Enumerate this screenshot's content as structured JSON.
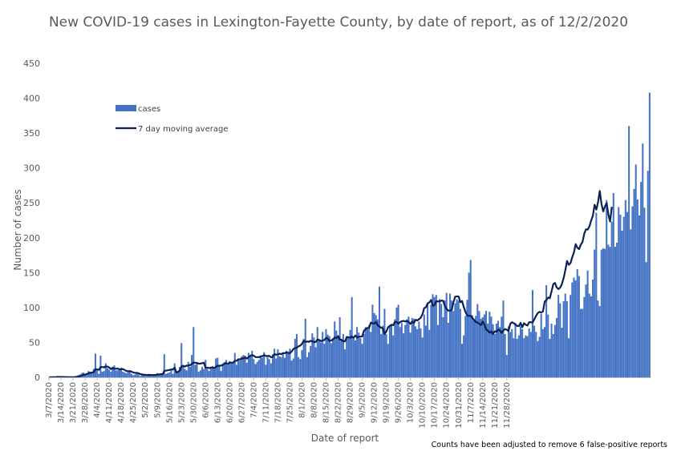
{
  "chart_data": {
    "type": "bar",
    "title": "New COVID-19 cases in Lexington-Fayette County, by date of report, as of 12/2/2020",
    "xlabel": "Date of report",
    "ylabel": "Number of cases",
    "ylim": [
      0,
      450
    ],
    "yticks": [
      0,
      50,
      100,
      150,
      200,
      250,
      300,
      350,
      400,
      450
    ],
    "grid": false,
    "legend_position": "top-left",
    "footnote": "Counts have been adjusted to remove 6 false-positive reports",
    "colors": {
      "bars": "#4472C4",
      "line": "#0B2154",
      "text": "#595959"
    },
    "x_start": "3/7/2020",
    "x_tick_labels": [
      "3/7/2020",
      "3/14/2020",
      "3/21/2020",
      "3/28/2020",
      "4/4/2020",
      "4/11/2020",
      "4/18/2020",
      "4/25/2020",
      "5/2/2020",
      "5/9/2020",
      "5/16/2020",
      "5/23/2020",
      "5/30/2020",
      "6/6/2020",
      "6/13/2020",
      "6/20/2020",
      "6/27/2020",
      "7/4/2020",
      "7/11/2020",
      "7/18/2020",
      "7/25/2020",
      "8/1/2020",
      "8/8/2020",
      "8/15/2020",
      "8/22/2020",
      "8/29/2020",
      "9/5/2020",
      "9/12/2020",
      "9/19/2020",
      "9/26/2020",
      "10/3/2020",
      "10/10/2020",
      "10/17/2020",
      "10/24/2020",
      "10/31/2020",
      "11/7/2020",
      "11/14/2020",
      "11/21/2020",
      "11/28/2020"
    ],
    "series": [
      {
        "name": "cases",
        "kind": "bar",
        "values": [
          0,
          0,
          1,
          0,
          0,
          2,
          0,
          0,
          0,
          0,
          1,
          0,
          0,
          1,
          0,
          1,
          2,
          3,
          4,
          6,
          7,
          5,
          6,
          9,
          8,
          7,
          12,
          34,
          10,
          5,
          31,
          8,
          9,
          20,
          13,
          11,
          8,
          15,
          17,
          10,
          10,
          12,
          14,
          8,
          7,
          6,
          9,
          10,
          5,
          3,
          4,
          6,
          4,
          2,
          3,
          4,
          3,
          2,
          5,
          3,
          2,
          4,
          3,
          6,
          4,
          5,
          4,
          33,
          5,
          6,
          7,
          10,
          5,
          20,
          6,
          8,
          15,
          49,
          18,
          12,
          10,
          22,
          15,
          32,
          72,
          18,
          20,
          8,
          10,
          15,
          12,
          25,
          12,
          9,
          14,
          16,
          13,
          27,
          28,
          18,
          9,
          20,
          22,
          25,
          18,
          23,
          22,
          21,
          35,
          18,
          27,
          24,
          30,
          32,
          31,
          21,
          35,
          32,
          38,
          26,
          19,
          22,
          25,
          30,
          28,
          36,
          18,
          29,
          26,
          20,
          33,
          41,
          27,
          40,
          30,
          29,
          33,
          28,
          38,
          35,
          41,
          24,
          27,
          55,
          62,
          29,
          26,
          39,
          55,
          84,
          29,
          36,
          45,
          63,
          57,
          43,
          72,
          53,
          50,
          65,
          48,
          69,
          61,
          59,
          49,
          56,
          80,
          67,
          60,
          86,
          54,
          62,
          40,
          59,
          57,
          68,
          115,
          58,
          53,
          72,
          64,
          56,
          48,
          62,
          72,
          69,
          75,
          65,
          104,
          92,
          89,
          83,
          130,
          62,
          74,
          98,
          62,
          48,
          74,
          76,
          60,
          83,
          100,
          104,
          72,
          78,
          63,
          75,
          83,
          87,
          64,
          85,
          84,
          73,
          69,
          80,
          70,
          57,
          90,
          74,
          106,
          68,
          104,
          119,
          115,
          118,
          75,
          112,
          105,
          86,
          110,
          121,
          78,
          120,
          110,
          95,
          106,
          112,
          110,
          98,
          48,
          60,
          88,
          111,
          150,
          168,
          89,
          82,
          88,
          105,
          95,
          84,
          86,
          90,
          95,
          77,
          94,
          87,
          76,
          62,
          77,
          81,
          72,
          87,
          110,
          62,
          32,
          73,
          65,
          69,
          56,
          78,
          55,
          60,
          73,
          69,
          56,
          60,
          59,
          70,
          65,
          125,
          74,
          65,
          52,
          58,
          91,
          69,
          72,
          132,
          90,
          55,
          77,
          62,
          75,
          85,
          118,
          106,
          71,
          109,
          120,
          109,
          56,
          118,
          136,
          143,
          139,
          155,
          145,
          98,
          98,
          115,
          133,
          153,
          120,
          116,
          140,
          183,
          236,
          110,
          102,
          183,
          185,
          184,
          254,
          190,
          187,
          223,
          264,
          187,
          193,
          244,
          233,
          210,
          230,
          254,
          237,
          360,
          212,
          245,
          270,
          305,
          255,
          232,
          280,
          335,
          243,
          165,
          296,
          408
        ]
      },
      {
        "name": "7 day moving average",
        "kind": "line",
        "values": [
          0,
          0,
          0.2,
          0.2,
          0.2,
          0.4,
          0.4,
          0.4,
          0.4,
          0.3,
          0.3,
          0.2,
          0.2,
          0.2,
          0.2,
          0.3,
          0.5,
          0.9,
          1.6,
          2.4,
          3.4,
          4,
          4.6,
          5.7,
          6.4,
          6.8,
          7.4,
          11.6,
          11.3,
          10.6,
          14.7,
          14.7,
          14.2,
          15.6,
          15.3,
          14.1,
          11.8,
          13.4,
          12.4,
          12.3,
          12.5,
          11.3,
          11.5,
          11.8,
          10.4,
          9.1,
          8.7,
          9,
          8,
          6.9,
          6.3,
          6.4,
          5.8,
          4.6,
          4.2,
          3.7,
          3.5,
          3.3,
          3.3,
          3.3,
          3.2,
          3.3,
          3.4,
          3.9,
          4,
          4.6,
          4.3,
          9.2,
          9.5,
          10.1,
          10.5,
          11.2,
          11.2,
          13.9,
          6.9,
          8,
          9.6,
          15.8,
          16,
          15.5,
          16.8,
          16.8,
          17.5,
          19.2,
          21.2,
          20.9,
          20.6,
          19.6,
          19.6,
          20.3,
          20.8,
          13.5,
          13.8,
          13.3,
          13.8,
          14.1,
          13.3,
          14.9,
          16.6,
          16.5,
          16.9,
          17.6,
          19.6,
          20.1,
          19.3,
          21.1,
          21,
          20.9,
          23.6,
          23.6,
          25.7,
          25.7,
          27,
          27.2,
          28.4,
          26.9,
          29.1,
          30.9,
          31.8,
          30.9,
          29,
          28.9,
          28.8,
          30,
          30.3,
          31.9,
          30.5,
          30.6,
          30.7,
          28.7,
          29.5,
          33.3,
          32.3,
          32.9,
          33.9,
          33.1,
          34.7,
          34.5,
          35.6,
          35.2,
          34.4,
          37.1,
          40.5,
          41.9,
          42.4,
          44.4,
          45.4,
          48,
          52.5,
          50.6,
          51.3,
          50.8,
          52.3,
          51.4,
          50.5,
          50.6,
          54.2,
          53.5,
          51.9,
          52.7,
          53.3,
          56.4,
          55.4,
          52,
          52.7,
          54.3,
          57,
          56.4,
          59,
          54,
          53.8,
          51.5,
          51.6,
          57.5,
          57.4,
          56.6,
          58.4,
          56.7,
          59.9,
          57.1,
          58,
          58.3,
          58.7,
          66.8,
          69.1,
          70.6,
          70.8,
          78.4,
          77.3,
          77,
          79.5,
          74.4,
          72.7,
          71.1,
          70,
          62.1,
          65.7,
          71.6,
          73.6,
          75.3,
          74.7,
          79.4,
          79.1,
          76.8,
          79.1,
          80.3,
          80.9,
          79.9,
          80.9,
          79.3,
          76.6,
          79.7,
          77.7,
          82.4,
          81.5,
          83.3,
          85.4,
          90.4,
          99.1,
          100.4,
          106,
          107.3,
          110.7,
          102.4,
          103.6,
          108.9,
          108.8,
          108.8,
          110.1,
          109.6,
          102.2,
          98.1,
          95.5,
          95.5,
          96.5,
          107.7,
          115.6,
          115.9,
          115.9,
          107.6,
          109.3,
          100.7,
          93.5,
          88.6,
          88.1,
          88.1,
          85,
          82.4,
          78.9,
          78.6,
          76.7,
          74.7,
          79.8,
          75.4,
          68.6,
          66.8,
          64.2,
          65.6,
          61.9,
          65.9,
          65.4,
          68.4,
          67,
          63.6,
          67.2,
          69.2,
          68.1,
          66.3,
          76.7,
          78.9,
          77.6,
          75.5,
          73.6,
          73.3,
          78.1,
          71.8,
          77.5,
          75.3,
          74.2,
          79,
          78.9,
          78.6,
          83.3,
          88.1,
          92.1,
          93.8,
          92.9,
          94.3,
          108.4,
          110.7,
          114.4,
          113.3,
          123.3,
          133.6,
          135.2,
          128.7,
          126.4,
          128.5,
          133.6,
          142.1,
          153.5,
          166.6,
          161.2,
          163.7,
          172,
          178.9,
          190.9,
          185.7,
          183.7,
          190.1,
          194.1,
          205.9,
          211.9,
          211.8,
          216.2,
          224.6,
          231.6,
          247.1,
          240.4,
          250.8,
          267,
          248.6,
          237.7,
          244.6,
          249.7,
          233.4,
          223.3,
          244.3
        ]
      }
    ],
    "legend_entries": [
      "cases",
      "7 day moving average"
    ]
  }
}
